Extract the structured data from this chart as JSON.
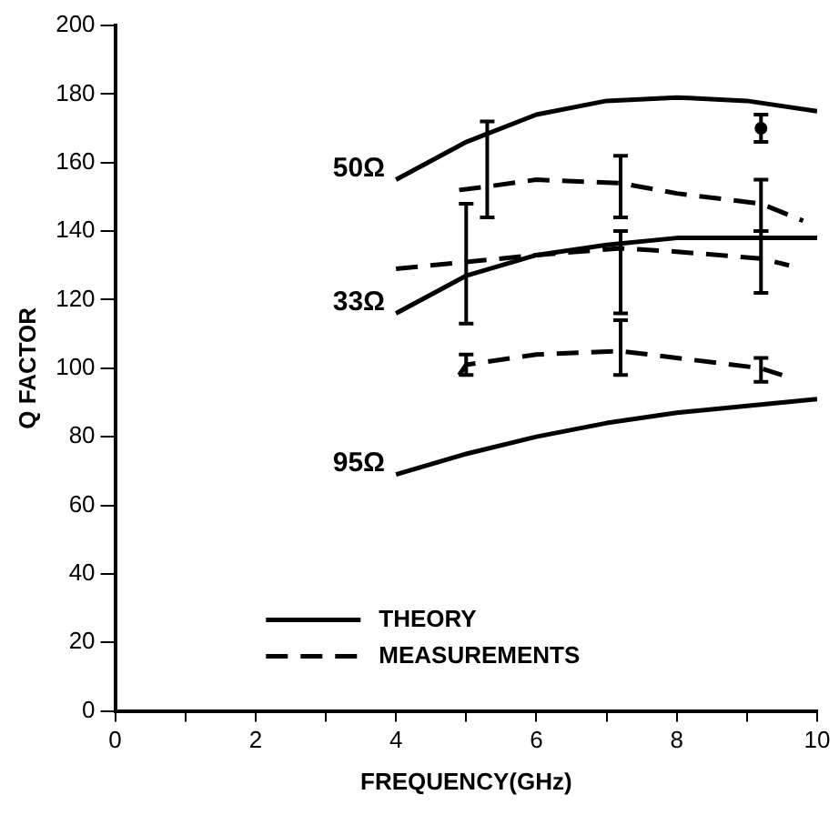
{
  "chart_data": {
    "type": "line",
    "xlabel": "FREQUENCY(GHz)",
    "ylabel": "Q FACTOR",
    "xlim": [
      0,
      10
    ],
    "ylim": [
      0,
      200
    ],
    "xticks": [
      0,
      {
        "value": 1,
        "label": null
      },
      2,
      {
        "value": 3,
        "label": null
      },
      4,
      {
        "value": 5,
        "label": null
      },
      6,
      {
        "value": 7,
        "label": null
      },
      8,
      {
        "value": 9,
        "label": null
      },
      10
    ],
    "yticks": [
      0,
      20,
      40,
      60,
      80,
      100,
      120,
      140,
      160,
      180,
      200
    ],
    "grid": false,
    "legend": "bottom",
    "marker": "none",
    "annotations": [
      "50Ω",
      "33Ω",
      "95Ω"
    ],
    "series": [
      {
        "name": "THEORY",
        "color": "#000000",
        "line_style": "solid",
        "x": [
          4,
          5,
          6,
          7,
          8,
          9,
          10
        ],
        "values": [
          155,
          166,
          174,
          178,
          179,
          178,
          175
        ]
      },
      {
        "color": "#000000",
        "line_style": "solid",
        "x": [
          4,
          5,
          6,
          7,
          8,
          9,
          10
        ],
        "values": [
          116,
          127,
          133,
          136,
          138,
          138,
          138
        ]
      },
      {
        "color": "#000000",
        "line_style": "solid",
        "x": [
          4,
          5,
          6,
          7,
          8,
          9,
          10
        ],
        "values": [
          69,
          75,
          80,
          84,
          87,
          89,
          91
        ]
      },
      {
        "name": "MEASUREMENTS",
        "color": "#000000",
        "line_style": "dashed",
        "x": [
          4.9,
          5.3,
          6,
          7.2,
          8,
          9.2,
          9.8
        ],
        "values": [
          152,
          153,
          155,
          154,
          151,
          148,
          143
        ],
        "errors": [
          null,
          [
            144,
            172
          ],
          null,
          [
            144,
            162
          ],
          null,
          [
            140,
            155
          ],
          null
        ]
      },
      {
        "color": "#000000",
        "line_style": "dashed",
        "x": [
          4,
          5,
          6,
          7.2,
          8,
          9.2,
          9.6
        ],
        "values": [
          129,
          131,
          133,
          135,
          134,
          132,
          130
        ],
        "errors": [
          null,
          [
            113,
            148
          ],
          null,
          [
            116,
            140
          ],
          null,
          [
            122,
            140
          ],
          null
        ]
      },
      {
        "color": "#000000",
        "line_style": "dashed",
        "x": [
          4.9,
          5,
          6,
          7.2,
          8,
          9.2,
          9.5
        ],
        "values": [
          98,
          101,
          104,
          105,
          103,
          100,
          98
        ],
        "errors": [
          null,
          [
            98,
            104
          ],
          null,
          [
            98,
            114
          ],
          null,
          [
            96,
            103
          ],
          null
        ]
      },
      {
        "type": "scatter",
        "marker": "circle",
        "color": "#000000",
        "x": [
          9.2
        ],
        "values": [
          170
        ],
        "errors": [
          [
            166,
            174
          ]
        ]
      }
    ]
  }
}
